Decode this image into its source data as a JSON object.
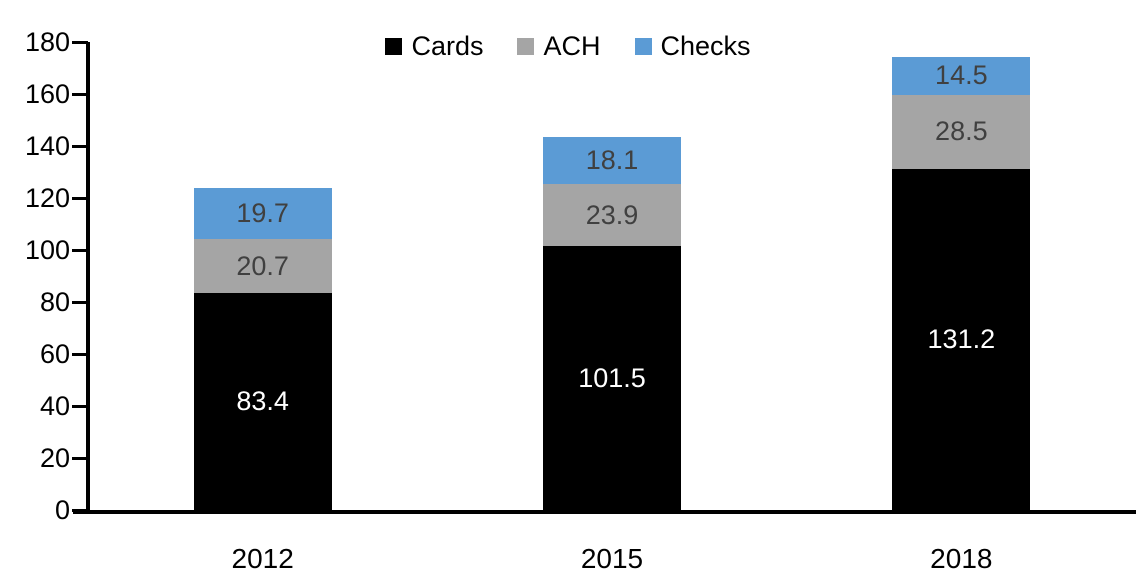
{
  "chart": {
    "background_color": "#FFFFFF",
    "axis_color": "#000000",
    "axis_text_color": "#000000"
  },
  "chart_data": {
    "type": "bar",
    "stacked": true,
    "title": "",
    "categories": [
      "2012",
      "2015",
      "2018"
    ],
    "series": [
      {
        "name": "Cards",
        "color": "#000000",
        "label_color": "#FFFFFF",
        "values": [
          83.4,
          101.5,
          131.2
        ]
      },
      {
        "name": "ACH",
        "color": "#A5A5A5",
        "label_color": "#404040",
        "values": [
          20.7,
          23.9,
          28.5
        ]
      },
      {
        "name": "Checks",
        "color": "#5B9BD5",
        "label_color": "#404040",
        "values": [
          19.7,
          18.1,
          14.5
        ]
      }
    ],
    "totals": [
      123.8,
      143.5,
      174.2
    ],
    "ylim": [
      0,
      180
    ],
    "yticks": [
      0,
      20,
      40,
      60,
      80,
      100,
      120,
      140,
      160,
      180
    ],
    "legend_position": "top-center",
    "legend_entries": [
      "Cards",
      "ACH",
      "Checks"
    ],
    "grid": false,
    "data_labels_shown": true
  }
}
